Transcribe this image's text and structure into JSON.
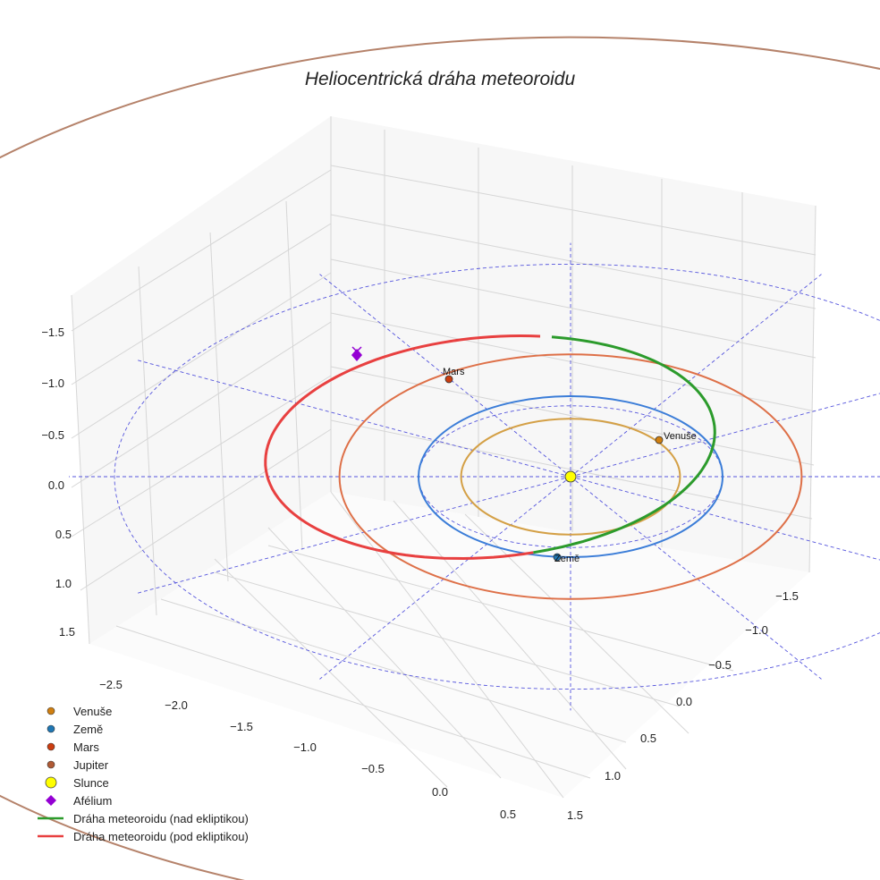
{
  "chart_data": {
    "type": "line3d",
    "title": "Heliocentrická dráha meteoroidu",
    "axes": {
      "x": {
        "ticks": [
          -2.5,
          -2.0,
          -1.5,
          -1.0,
          -0.5,
          0.0,
          0.5
        ],
        "tick_labels": [
          "−2.5",
          "−2.0",
          "−1.5",
          "−1.0",
          "−0.5",
          "0.0",
          "0.5"
        ]
      },
      "y": {
        "ticks": [
          -1.5,
          -1.0,
          -0.5,
          0.0,
          0.5,
          1.0,
          1.5
        ],
        "tick_labels": [
          "−1.5",
          "−1.0",
          "−0.5",
          "0.0",
          "0.5",
          "1.0",
          "1.5"
        ]
      },
      "z": {
        "ticks": [
          -1.5,
          -1.0,
          -0.5,
          0.0,
          0.5,
          1.0,
          1.5
        ],
        "tick_labels": [
          "−1.5",
          "−1.0",
          "−0.5",
          "0.0",
          "0.5",
          "1.0",
          "1.5"
        ]
      }
    },
    "orbits": [
      {
        "name": "Venuše",
        "a": 0.72,
        "color": "#d4a046"
      },
      {
        "name": "Země",
        "a": 1.0,
        "color": "#3b7dd8"
      },
      {
        "name": "Mars",
        "a": 1.52,
        "color": "#de7048"
      },
      {
        "name": "Jupiter",
        "a": 5.2,
        "color": "#b5826a"
      }
    ],
    "planets": [
      {
        "name": "Venuše",
        "color": "#d07f10",
        "label": "Venuše"
      },
      {
        "name": "Země",
        "color": "#1f77b4",
        "label": "Země"
      },
      {
        "name": "Mars",
        "color": "#cc3d10",
        "label": "Mars"
      },
      {
        "name": "Jupiter",
        "color": "#b05a35",
        "label": ""
      }
    ],
    "sun": {
      "name": "Slunce",
      "color": "#ffff00"
    },
    "aphelion": {
      "name": "Afélium",
      "color": "#9400d3"
    },
    "meteoroid": {
      "above": {
        "name": "Dráha meteoroidu (nad ekliptikou)",
        "color": "#2c9b2c"
      },
      "below": {
        "name": "Dráha meteoroidu (pod ekliptikou)",
        "color": "#e84040"
      }
    },
    "legend": {
      "position": "lower-left",
      "entries": [
        {
          "label": "Venuše",
          "marker": "circle",
          "color": "#d07f10"
        },
        {
          "label": "Země",
          "marker": "circle",
          "color": "#1f77b4"
        },
        {
          "label": "Mars",
          "marker": "circle",
          "color": "#cc3d10"
        },
        {
          "label": "Jupiter",
          "marker": "circle",
          "color": "#b05a35"
        },
        {
          "label": "Slunce",
          "marker": "bigcircle",
          "color": "#ffff00"
        },
        {
          "label": "Afélium",
          "marker": "diamond",
          "color": "#9400d3"
        },
        {
          "label": "Dráha meteoroidu (nad ekliptikou)",
          "marker": "line",
          "color": "#2c9b2c"
        },
        {
          "label": "Dráha meteoroidu (pod ekliptikou)",
          "marker": "line",
          "color": "#e84040"
        }
      ]
    }
  }
}
